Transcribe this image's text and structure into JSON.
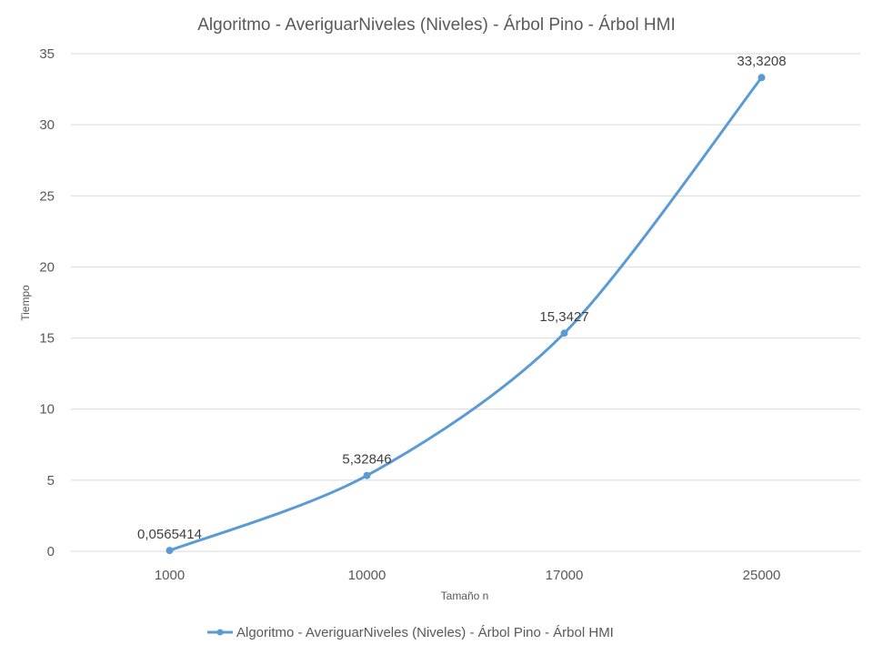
{
  "chart_data": {
    "type": "line",
    "title": "Algoritmo - AveriguarNiveles (Niveles)  - Árbol Pino - Árbol HMI",
    "xlabel": "Tamaño n",
    "ylabel": "Tiempo",
    "categories": [
      "1000",
      "10000",
      "17000",
      "25000"
    ],
    "series": [
      {
        "name": "Algoritmo - AveriguarNiveles (Niveles)  - Árbol Pino - Árbol HMI",
        "values": [
          0.0565414,
          5.32846,
          15.3427,
          33.3208
        ],
        "labels": [
          "0,0565414",
          "5,32846",
          "15,3427",
          "33,3208"
        ],
        "color": "#5b9bd5"
      }
    ],
    "ylim": [
      0,
      35
    ],
    "yticks": [
      0,
      5,
      10,
      15,
      20,
      25,
      30,
      35
    ],
    "grid": true,
    "legend": "bottom"
  }
}
